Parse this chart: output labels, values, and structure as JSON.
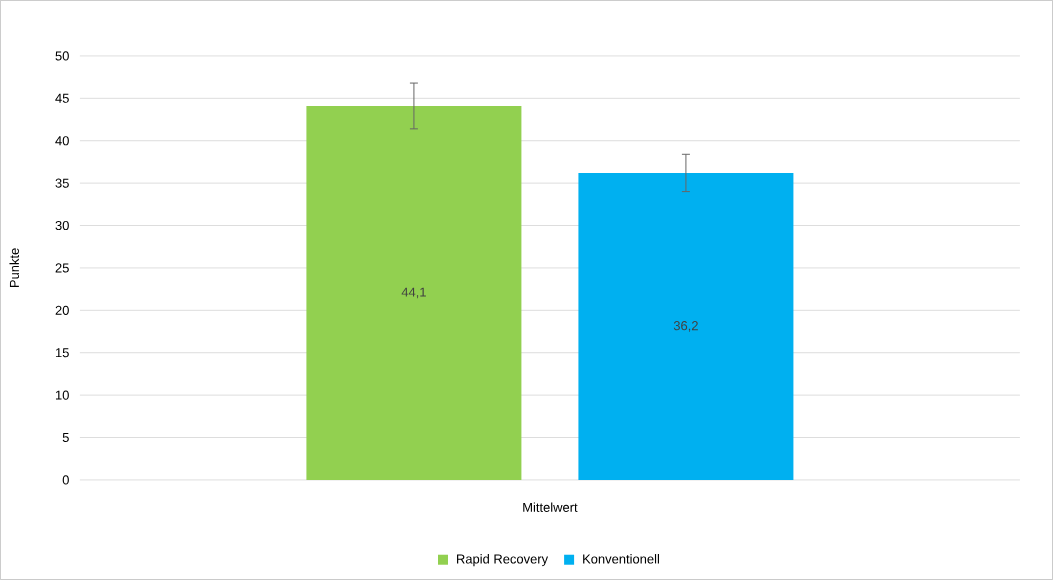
{
  "chart_data": {
    "type": "bar",
    "ylabel": "Punkte",
    "categories": [
      "Mittelwert"
    ],
    "series": [
      {
        "name": "Rapid Recovery",
        "color": "#92d050",
        "values": [
          44.1
        ],
        "errors": [
          2.7
        ],
        "value_labels": [
          "44,1"
        ]
      },
      {
        "name": "Konventionell",
        "color": "#00b0f0",
        "values": [
          36.2
        ],
        "errors": [
          2.2
        ],
        "value_labels": [
          "36,2"
        ]
      }
    ],
    "ylim": [
      0,
      50
    ],
    "yticks": [
      0,
      5,
      10,
      15,
      20,
      25,
      30,
      35,
      40,
      45,
      50
    ],
    "grid": "y",
    "legend": "bottom"
  }
}
